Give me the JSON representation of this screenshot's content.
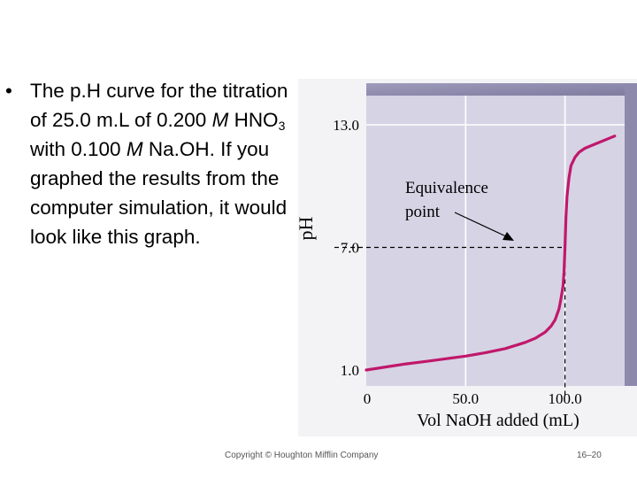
{
  "slide": {
    "bullet": "•",
    "text_parts": [
      "The p.H curve for the titration of 25.0 m.L of 0.200 ",
      "M",
      " HNO",
      "3",
      " with 0.100 ",
      "M",
      " Na.OH.  If you graphed the results from the computer simulation, it would look like this graph."
    ],
    "footer_copyright": "Copyright © Houghton Mifflin Company",
    "footer_page": "16–20"
  },
  "chart_data": {
    "type": "line",
    "xlabel": "Vol NaOH added (mL)",
    "ylabel": "pH",
    "x_ticks": [
      0,
      50,
      100
    ],
    "x_tick_labels": [
      "0",
      "50.0",
      "100.0"
    ],
    "y_ticks": [
      1,
      7,
      13
    ],
    "y_tick_labels": [
      "1.0",
      "7.0",
      "13.0"
    ],
    "xlim": [
      0,
      130
    ],
    "ylim": [
      1,
      13
    ],
    "grid": true,
    "background_color": "#d6d3e5",
    "line_color": "#c0186a",
    "series": [
      {
        "x": [
          0,
          10,
          20,
          30,
          40,
          50,
          60,
          70,
          80,
          85,
          90,
          93,
          95,
          97,
          98,
          99,
          99.5,
          100,
          100.5,
          101,
          102,
          103,
          105,
          107,
          110,
          115,
          120,
          125
        ],
        "y": [
          1.0,
          1.15,
          1.3,
          1.42,
          1.55,
          1.68,
          1.85,
          2.05,
          2.35,
          2.55,
          2.85,
          3.15,
          3.45,
          4.0,
          4.5,
          5.1,
          5.8,
          7.0,
          8.5,
          9.5,
          10.4,
          11.0,
          11.4,
          11.65,
          11.85,
          12.05,
          12.25,
          12.45
        ]
      }
    ],
    "annotation": {
      "text_lines": [
        "Equivalence",
        "point"
      ],
      "x": 100,
      "y": 7
    }
  }
}
